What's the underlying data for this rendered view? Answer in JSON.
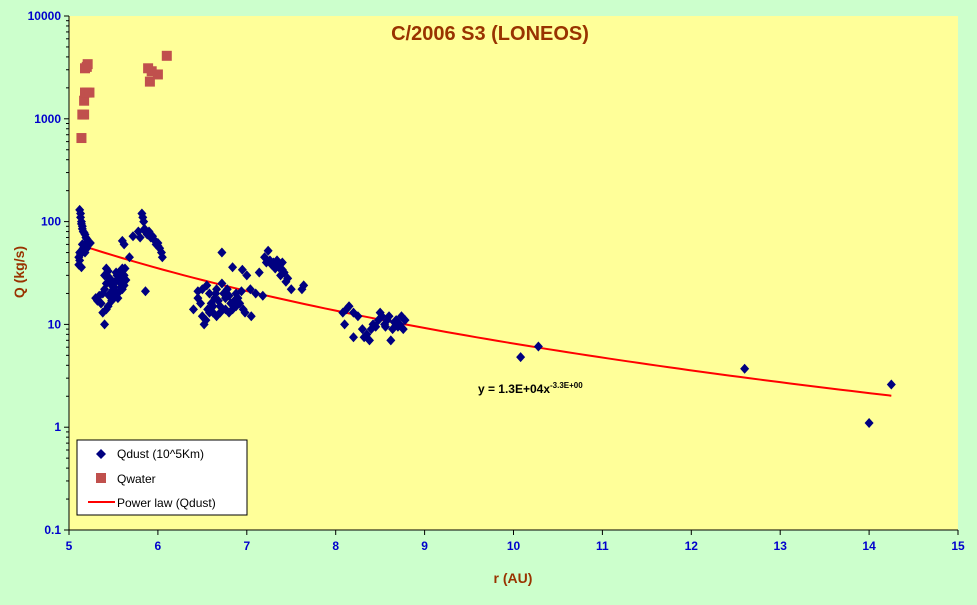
{
  "chart_data": {
    "type": "scatter",
    "title": "C/2006 S3 (LONEOS)",
    "xlabel": "r (AU)",
    "ylabel": "Q (kg/s)",
    "xlim": [
      5,
      15
    ],
    "ylim": [
      0.1,
      10000
    ],
    "yscale": "log",
    "grid": false,
    "legend_position": "bottom-left",
    "x_ticks": [
      "5",
      "6",
      "7",
      "8",
      "9",
      "10",
      "11",
      "12",
      "13",
      "14",
      "15"
    ],
    "y_ticks": [
      "0.1",
      "1",
      "10",
      "100",
      "1000",
      "10000"
    ],
    "y_tick_values": [
      0.1,
      1,
      10,
      100,
      1000,
      10000
    ],
    "annotation": {
      "text_base": "y = 1.3E+04x",
      "text_exp": "-3.3E+00",
      "x": 9.6,
      "y": 1.0
    },
    "colors": {
      "background": "#ccffcc",
      "plot_area": "#ffff99",
      "title": "#993300",
      "ylabel": "#993300",
      "xlabel": "#993300",
      "tick_labels": "#0000cc",
      "dust": "#000080",
      "water": "#c0504d",
      "fit": "#ff0000"
    },
    "series": [
      {
        "name": "Qdust (10^5Km)",
        "marker": "diamond",
        "points": [
          [
            5.12,
            130
          ],
          [
            5.13,
            120
          ],
          [
            5.13,
            110
          ],
          [
            5.14,
            100
          ],
          [
            5.14,
            95
          ],
          [
            5.15,
            90
          ],
          [
            5.15,
            85
          ],
          [
            5.16,
            80
          ],
          [
            5.17,
            78
          ],
          [
            5.18,
            75
          ],
          [
            5.19,
            70
          ],
          [
            5.2,
            68
          ],
          [
            5.21,
            65
          ],
          [
            5.22,
            62
          ],
          [
            5.15,
            60
          ],
          [
            5.16,
            55
          ],
          [
            5.12,
            50
          ],
          [
            5.13,
            48
          ],
          [
            5.11,
            45
          ],
          [
            5.12,
            42
          ],
          [
            5.11,
            38
          ],
          [
            5.14,
            36
          ],
          [
            5.18,
            50
          ],
          [
            5.2,
            55
          ],
          [
            5.24,
            62
          ],
          [
            5.3,
            18
          ],
          [
            5.32,
            17
          ],
          [
            5.34,
            19
          ],
          [
            5.36,
            16
          ],
          [
            5.38,
            20
          ],
          [
            5.4,
            22
          ],
          [
            5.42,
            25
          ],
          [
            5.4,
            30
          ],
          [
            5.42,
            35
          ],
          [
            5.44,
            33
          ],
          [
            5.46,
            28
          ],
          [
            5.48,
            24
          ],
          [
            5.5,
            22
          ],
          [
            5.52,
            26
          ],
          [
            5.54,
            30
          ],
          [
            5.56,
            28
          ],
          [
            5.58,
            25
          ],
          [
            5.6,
            22
          ],
          [
            5.62,
            30
          ],
          [
            5.63,
            35
          ],
          [
            5.64,
            27
          ],
          [
            5.5,
            18
          ],
          [
            5.46,
            20
          ],
          [
            5.44,
            15
          ],
          [
            5.42,
            14
          ],
          [
            5.4,
            10
          ],
          [
            5.38,
            13
          ],
          [
            5.36,
            16
          ],
          [
            5.52,
            20
          ],
          [
            5.55,
            18
          ],
          [
            5.57,
            21
          ],
          [
            5.59,
            23
          ],
          [
            5.61,
            27
          ],
          [
            5.53,
            32
          ],
          [
            5.45,
            19
          ],
          [
            5.48,
            17
          ],
          [
            5.43,
            29
          ],
          [
            5.47,
            26
          ],
          [
            5.56,
            32
          ],
          [
            5.6,
            35
          ],
          [
            5.62,
            24
          ],
          [
            5.51,
            23
          ],
          [
            5.6,
            65
          ],
          [
            5.62,
            60
          ],
          [
            5.68,
            45
          ],
          [
            5.72,
            72
          ],
          [
            5.78,
            80
          ],
          [
            5.8,
            70
          ],
          [
            5.82,
            120
          ],
          [
            5.83,
            110
          ],
          [
            5.84,
            100
          ],
          [
            5.85,
            85
          ],
          [
            5.86,
            80
          ],
          [
            5.87,
            78
          ],
          [
            5.88,
            75
          ],
          [
            5.9,
            80
          ],
          [
            5.92,
            70
          ],
          [
            5.94,
            72
          ],
          [
            5.96,
            66
          ],
          [
            5.98,
            60
          ],
          [
            6.0,
            58
          ],
          [
            6.02,
            55
          ],
          [
            6.04,
            50
          ],
          [
            6.05,
            45
          ],
          [
            5.86,
            21
          ],
          [
            5.9,
            75
          ],
          [
            6.0,
            62
          ],
          [
            6.4,
            14
          ],
          [
            6.45,
            18
          ],
          [
            6.48,
            16
          ],
          [
            6.5,
            12
          ],
          [
            6.52,
            10
          ],
          [
            6.54,
            11
          ],
          [
            6.56,
            14
          ],
          [
            6.58,
            13
          ],
          [
            6.6,
            16
          ],
          [
            6.62,
            15
          ],
          [
            6.64,
            18
          ],
          [
            6.65,
            20
          ],
          [
            6.66,
            22
          ],
          [
            6.68,
            17
          ],
          [
            6.7,
            15
          ],
          [
            6.72,
            25
          ],
          [
            6.74,
            20
          ],
          [
            6.76,
            18
          ],
          [
            6.78,
            22
          ],
          [
            6.8,
            19
          ],
          [
            6.82,
            16
          ],
          [
            6.84,
            14
          ],
          [
            6.86,
            17
          ],
          [
            6.88,
            20
          ],
          [
            6.9,
            18
          ],
          [
            6.92,
            16
          ],
          [
            6.94,
            21
          ],
          [
            6.96,
            14
          ],
          [
            6.98,
            13
          ],
          [
            6.72,
            50
          ],
          [
            6.84,
            36
          ],
          [
            6.95,
            34
          ],
          [
            7.05,
            12
          ],
          [
            7.04,
            22
          ],
          [
            7.1,
            20
          ],
          [
            7.14,
            32
          ],
          [
            7.18,
            19
          ],
          [
            6.62,
            13
          ],
          [
            6.66,
            12
          ],
          [
            6.7,
            13
          ],
          [
            6.76,
            14
          ],
          [
            6.8,
            13
          ],
          [
            6.88,
            15
          ],
          [
            6.55,
            24
          ],
          [
            6.5,
            22
          ],
          [
            6.58,
            20
          ],
          [
            6.45,
            21
          ],
          [
            7.0,
            30
          ],
          [
            7.2,
            45
          ],
          [
            7.22,
            40
          ],
          [
            7.24,
            52
          ],
          [
            7.26,
            42
          ],
          [
            7.28,
            38
          ],
          [
            7.3,
            40
          ],
          [
            7.32,
            35
          ],
          [
            7.34,
            42
          ],
          [
            7.36,
            38
          ],
          [
            7.38,
            30
          ],
          [
            7.4,
            40
          ],
          [
            7.42,
            32
          ],
          [
            7.44,
            26
          ],
          [
            7.46,
            28
          ],
          [
            7.5,
            22
          ],
          [
            7.62,
            22
          ],
          [
            7.64,
            24
          ],
          [
            7.36,
            36
          ],
          [
            7.4,
            34
          ],
          [
            8.08,
            13
          ],
          [
            8.1,
            10
          ],
          [
            8.12,
            14
          ],
          [
            8.15,
            15
          ],
          [
            8.2,
            13
          ],
          [
            8.2,
            7.5
          ],
          [
            8.25,
            12
          ],
          [
            8.3,
            9
          ],
          [
            8.32,
            7.5
          ],
          [
            8.35,
            8
          ],
          [
            8.38,
            7
          ],
          [
            8.4,
            9
          ],
          [
            8.42,
            10
          ],
          [
            8.45,
            9.5
          ],
          [
            8.48,
            11
          ],
          [
            8.5,
            13
          ],
          [
            8.52,
            12
          ],
          [
            8.55,
            10
          ],
          [
            8.58,
            11
          ],
          [
            8.6,
            12
          ],
          [
            8.62,
            7
          ],
          [
            8.64,
            9
          ],
          [
            8.66,
            10.5
          ],
          [
            8.68,
            11
          ],
          [
            8.7,
            9.5
          ],
          [
            8.72,
            10
          ],
          [
            8.74,
            12
          ],
          [
            8.78,
            11
          ],
          [
            8.76,
            9
          ],
          [
            8.56,
            9.5
          ],
          [
            10.08,
            4.8
          ],
          [
            10.28,
            6.1
          ],
          [
            12.6,
            3.7
          ],
          [
            14.0,
            1.1
          ],
          [
            14.25,
            2.6
          ]
        ]
      },
      {
        "name": "Qwater",
        "marker": "square",
        "points": [
          [
            5.14,
            650
          ],
          [
            5.15,
            1100
          ],
          [
            5.17,
            1100
          ],
          [
            5.17,
            1500
          ],
          [
            5.18,
            1800
          ],
          [
            5.2,
            1800
          ],
          [
            5.18,
            3100
          ],
          [
            5.2,
            3200
          ],
          [
            5.21,
            3400
          ],
          [
            5.23,
            1800
          ],
          [
            5.89,
            3100
          ],
          [
            5.91,
            2300
          ],
          [
            5.93,
            2900
          ],
          [
            6.0,
            2700
          ],
          [
            6.1,
            4100
          ]
        ]
      },
      {
        "name": "Power law (Qdust)",
        "type": "line",
        "coefficient": 13000,
        "exponent": -3.3,
        "x_range": [
          5.15,
          14.25
        ]
      }
    ]
  }
}
